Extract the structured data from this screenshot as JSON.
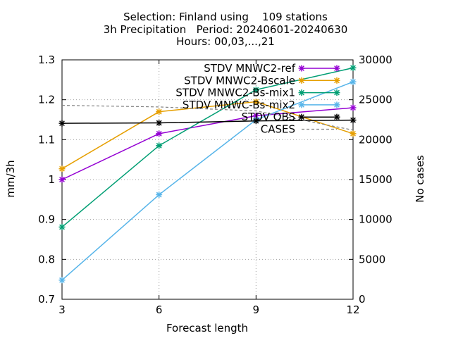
{
  "header": {
    "title_line1": "Selection: Finland using    109 stations",
    "title_line2": "3h Precipitation   Period: 20240601-20240630",
    "title_line3": "Hours: 00,03,...,21"
  },
  "chart_data": {
    "type": "line",
    "title": "Selection: Finland using    109 stations\n3h Precipitation   Period: 20240601-20240630\nHours: 00,03,...,21",
    "xlabel": "Forecast length",
    "ylabel": "mm/3h",
    "y2label": "No cases",
    "xlim": [
      3,
      12
    ],
    "ylim": [
      0.7,
      1.3
    ],
    "y2lim": [
      0,
      30000
    ],
    "xticks": [
      "3",
      "6",
      "9",
      "12"
    ],
    "yticks": [
      "0.7",
      "0.8",
      "0.9",
      "1",
      "1.1",
      "1.2",
      "1.3"
    ],
    "y2ticks": [
      "0",
      "5000",
      "10000",
      "15000",
      "20000",
      "25000",
      "30000"
    ],
    "grid": true,
    "legend_position": "top-right",
    "x": [
      3,
      6,
      9,
      12
    ],
    "series": [
      {
        "name": "STDV MNWC2-ref",
        "color": "#9400d3",
        "axis": "y",
        "dash": false,
        "marker": true,
        "values": [
          1.0,
          1.115,
          1.16,
          1.18
        ]
      },
      {
        "name": "STDV MNWC2-Bscale",
        "color": "#e69f00",
        "axis": "y",
        "dash": false,
        "marker": true,
        "values": [
          1.027,
          1.17,
          1.195,
          1.115
        ]
      },
      {
        "name": "STDV MNWC2-Bs-mix1",
        "color": "#009e73",
        "axis": "y",
        "dash": false,
        "marker": true,
        "values": [
          0.881,
          1.085,
          1.225,
          1.28
        ]
      },
      {
        "name": "STDV MNWC-Bs-mix2",
        "color": "#56b4e9",
        "axis": "y",
        "dash": false,
        "marker": true,
        "values": [
          0.748,
          0.962,
          1.15,
          1.245
        ]
      },
      {
        "name": "STDV OBS",
        "color": "#000000",
        "axis": "y",
        "dash": false,
        "marker": true,
        "values": [
          1.141,
          1.142,
          1.147,
          1.149
        ]
      },
      {
        "name": "CASES",
        "color": "#808080",
        "axis": "y2",
        "dash": true,
        "marker": false,
        "values": [
          24300,
          24100,
          23600,
          21200
        ]
      }
    ]
  }
}
